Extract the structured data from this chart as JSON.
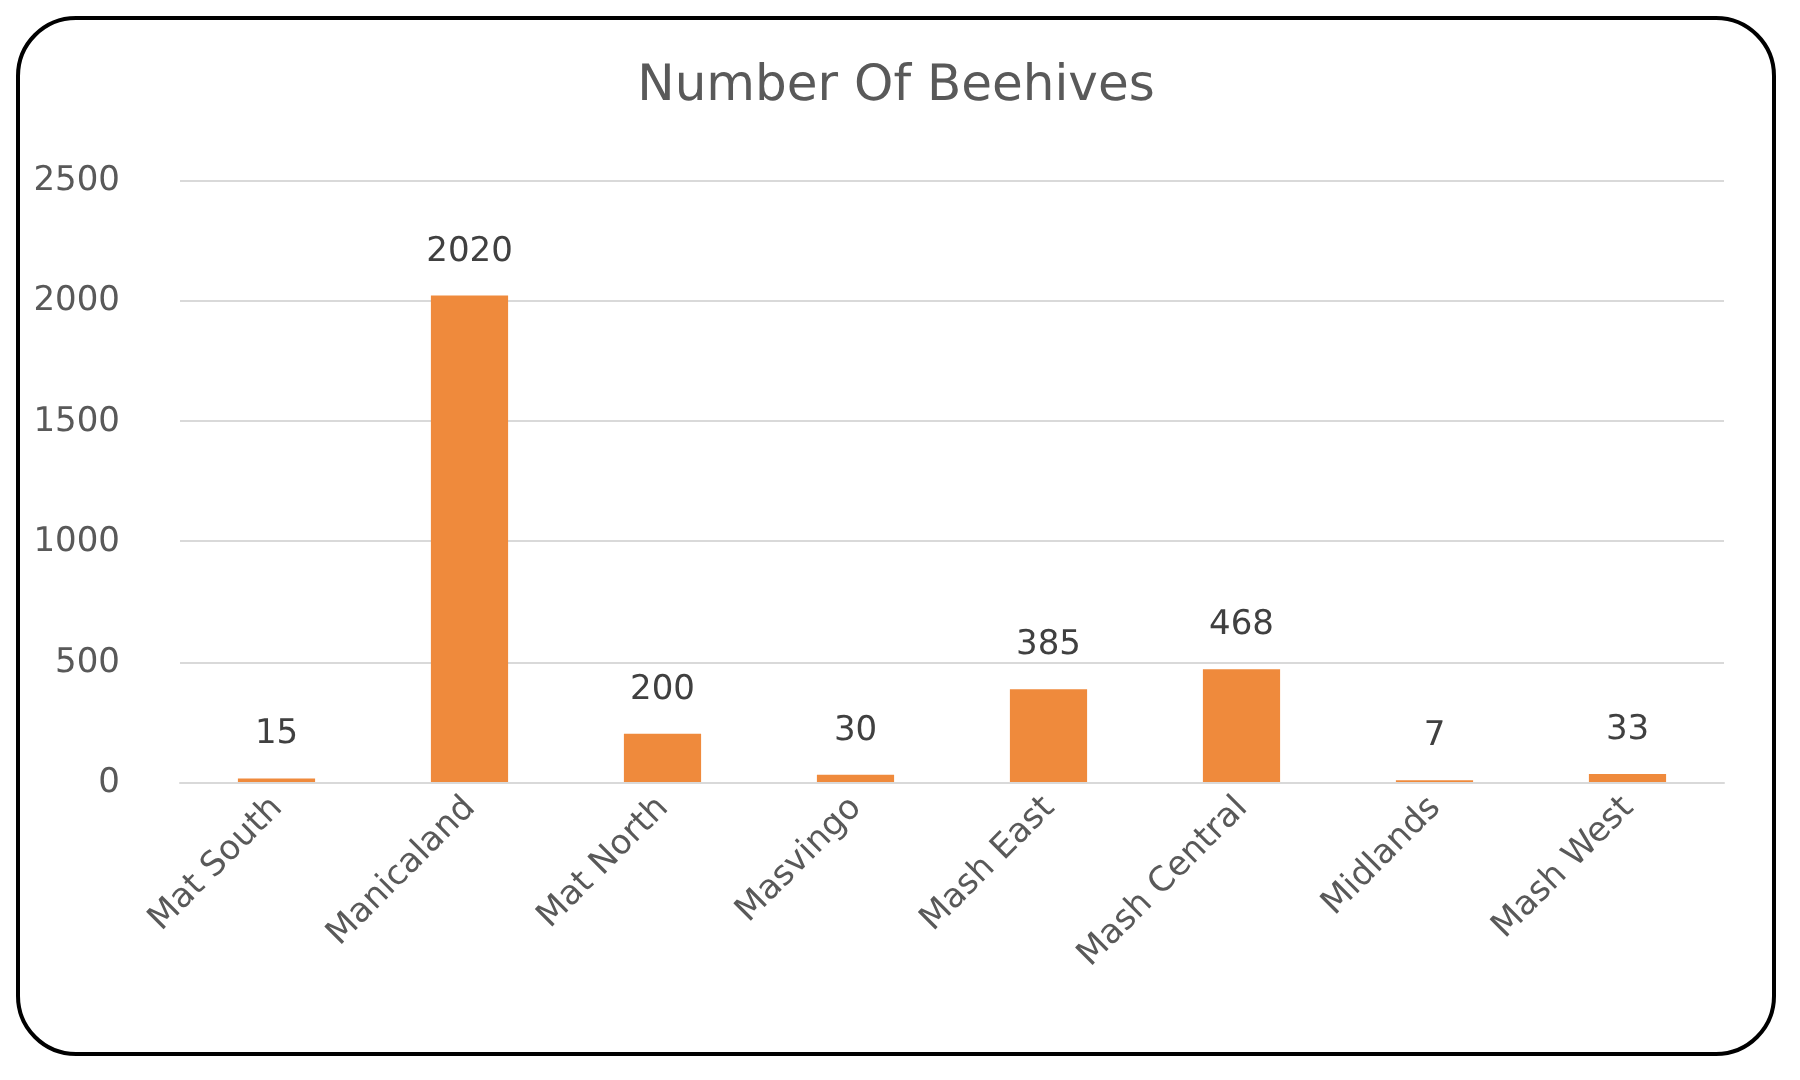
{
  "chart_data": {
    "type": "bar",
    "title": "Number Of Beehives",
    "categories": [
      "Mat South",
      "Manicaland",
      "Mat North",
      "Masvingo",
      "Mash East",
      "Mash Central",
      "Midlands",
      "Mash West"
    ],
    "values": [
      15,
      2020,
      200,
      30,
      385,
      468,
      7,
      33
    ],
    "color": "#ef8a3c",
    "ylim": [
      0,
      2500
    ],
    "yticks": [
      0,
      500,
      1000,
      1500,
      2000,
      2500
    ],
    "grid": "y",
    "data_labels": true
  }
}
